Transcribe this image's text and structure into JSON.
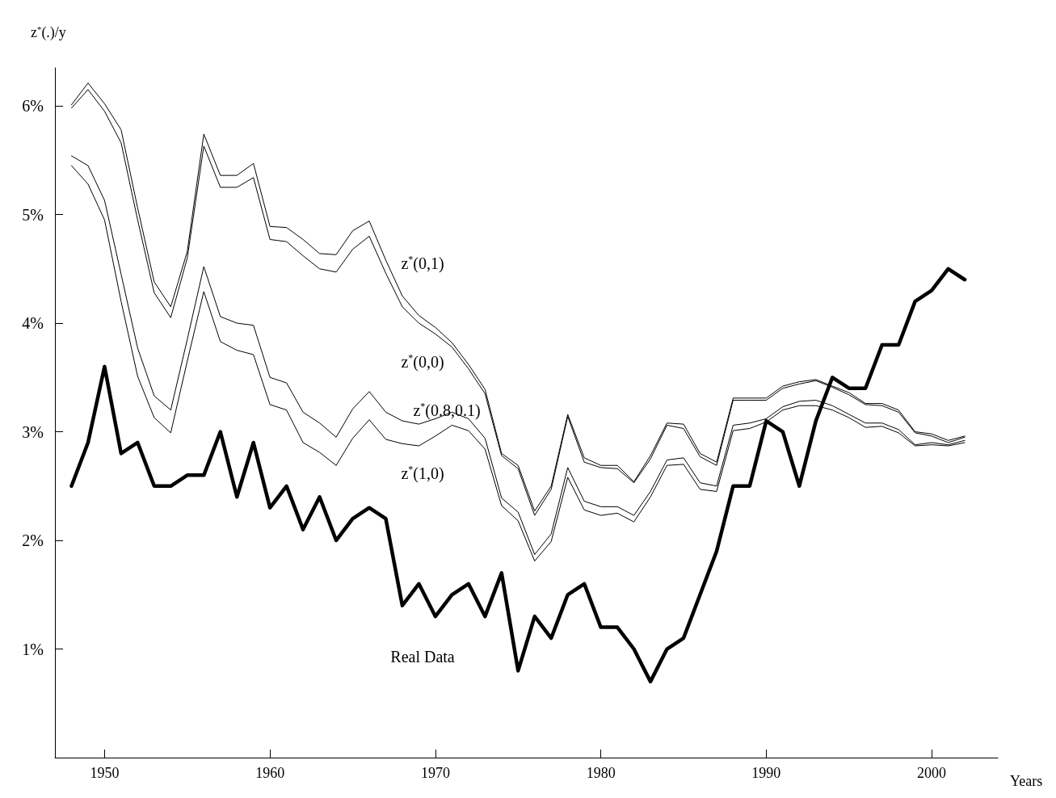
{
  "chart_data": {
    "type": "line",
    "ylabel": "z$^{*}$(.)/y",
    "xlabel": "Years",
    "x": [
      1948,
      1949,
      1950,
      1951,
      1952,
      1953,
      1954,
      1955,
      1956,
      1957,
      1958,
      1959,
      1960,
      1961,
      1962,
      1963,
      1964,
      1965,
      1966,
      1967,
      1968,
      1969,
      1970,
      1971,
      1972,
      1973,
      1974,
      1975,
      1976,
      1977,
      1978,
      1979,
      1980,
      1981,
      1982,
      1983,
      1984,
      1985,
      1986,
      1987,
      1988,
      1989,
      1990,
      1991,
      1992,
      1993,
      1994,
      1995,
      1996,
      1997,
      1998,
      1999,
      2000,
      2001,
      2002
    ],
    "series": [
      {
        "name": "Real Data",
        "color": "#000000",
        "values": [
          2.5,
          2.9,
          3.6,
          2.8,
          2.9,
          2.5,
          2.5,
          2.6,
          2.6,
          3.0,
          2.4,
          2.9,
          2.3,
          2.5,
          2.1,
          2.4,
          2.0,
          2.2,
          2.3,
          2.2,
          1.4,
          1.6,
          1.3,
          1.5,
          1.6,
          1.3,
          1.7,
          0.8,
          1.3,
          1.1,
          1.5,
          1.6,
          1.2,
          1.2,
          1.0,
          0.7,
          1.0,
          1.1,
          1.5,
          1.9,
          2.5,
          2.5,
          3.1,
          3.0,
          2.5,
          3.1,
          3.5,
          3.4,
          3.4,
          3.8,
          3.8,
          4.2,
          4.3,
          4.5,
          4.4
        ]
      },
      {
        "name": "z$^{*}$(0,1)",
        "color": "#000000",
        "values": [
          6.01,
          6.21,
          6.02,
          5.78,
          5.06,
          4.38,
          4.15,
          4.66,
          5.74,
          5.36,
          5.36,
          5.47,
          4.89,
          4.88,
          4.77,
          4.64,
          4.63,
          4.85,
          4.94,
          4.58,
          4.25,
          4.07,
          3.96,
          3.82,
          3.62,
          3.39,
          2.8,
          2.69,
          2.27,
          2.5,
          3.16,
          2.76,
          2.69,
          2.69,
          2.54,
          2.78,
          3.08,
          3.07,
          2.8,
          2.72,
          3.31,
          3.31,
          3.31,
          3.42,
          3.46,
          3.48,
          3.42,
          3.36,
          3.26,
          3.26,
          3.2,
          3.0,
          2.98,
          2.92,
          2.96
        ]
      },
      {
        "name": "z$^{*}$(0,0)",
        "color": "#000000",
        "values": [
          5.98,
          6.15,
          5.95,
          5.66,
          4.95,
          4.28,
          4.05,
          4.6,
          5.63,
          5.25,
          5.25,
          5.34,
          4.77,
          4.75,
          4.62,
          4.5,
          4.47,
          4.68,
          4.8,
          4.46,
          4.15,
          4.0,
          3.9,
          3.78,
          3.58,
          3.35,
          2.78,
          2.66,
          2.23,
          2.47,
          3.14,
          2.72,
          2.67,
          2.66,
          2.53,
          2.75,
          3.06,
          3.03,
          2.77,
          2.69,
          3.29,
          3.29,
          3.29,
          3.4,
          3.44,
          3.47,
          3.41,
          3.34,
          3.25,
          3.24,
          3.18,
          2.99,
          2.96,
          2.9,
          2.95
        ]
      },
      {
        "name": "z$^{*}$(0.8,0.1)",
        "color": "#000000",
        "values": [
          5.54,
          5.45,
          5.13,
          4.45,
          3.77,
          3.33,
          3.2,
          3.85,
          4.52,
          4.06,
          4.0,
          3.98,
          3.5,
          3.45,
          3.18,
          3.08,
          2.95,
          3.21,
          3.37,
          3.18,
          3.1,
          3.07,
          3.12,
          3.18,
          3.12,
          2.94,
          2.39,
          2.26,
          1.87,
          2.06,
          2.67,
          2.36,
          2.31,
          2.31,
          2.23,
          2.45,
          2.74,
          2.76,
          2.53,
          2.5,
          3.06,
          3.08,
          3.12,
          3.23,
          3.28,
          3.29,
          3.24,
          3.16,
          3.08,
          3.08,
          3.02,
          2.88,
          2.9,
          2.88,
          2.92
        ]
      },
      {
        "name": "z$^{*}$(1,0)",
        "color": "#000000",
        "values": [
          5.45,
          5.28,
          4.95,
          4.2,
          3.51,
          3.13,
          2.99,
          3.65,
          4.29,
          3.83,
          3.75,
          3.71,
          3.25,
          3.2,
          2.9,
          2.81,
          2.69,
          2.94,
          3.11,
          2.93,
          2.89,
          2.87,
          2.96,
          3.06,
          3.01,
          2.84,
          2.32,
          2.18,
          1.81,
          1.99,
          2.58,
          2.28,
          2.23,
          2.25,
          2.17,
          2.4,
          2.69,
          2.7,
          2.47,
          2.45,
          3.01,
          3.03,
          3.09,
          3.2,
          3.24,
          3.24,
          3.2,
          3.13,
          3.04,
          3.05,
          2.99,
          2.87,
          2.88,
          2.87,
          2.9
        ]
      }
    ],
    "xlim": [
      1947,
      2004
    ],
    "xticks": [
      1950,
      1960,
      1970,
      1980,
      1990,
      2000
    ],
    "ylim": [
      0,
      6.35
    ],
    "yticks": [
      {
        "value": 1,
        "label": "1%"
      },
      {
        "value": 2,
        "label": "2%"
      },
      {
        "value": 3,
        "label": "3%"
      },
      {
        "value": 4,
        "label": "4%"
      },
      {
        "value": 5,
        "label": "5%"
      },
      {
        "value": 6,
        "label": "6%"
      }
    ],
    "grid": false,
    "legend": false,
    "marker": "none",
    "line_style": "solid"
  }
}
